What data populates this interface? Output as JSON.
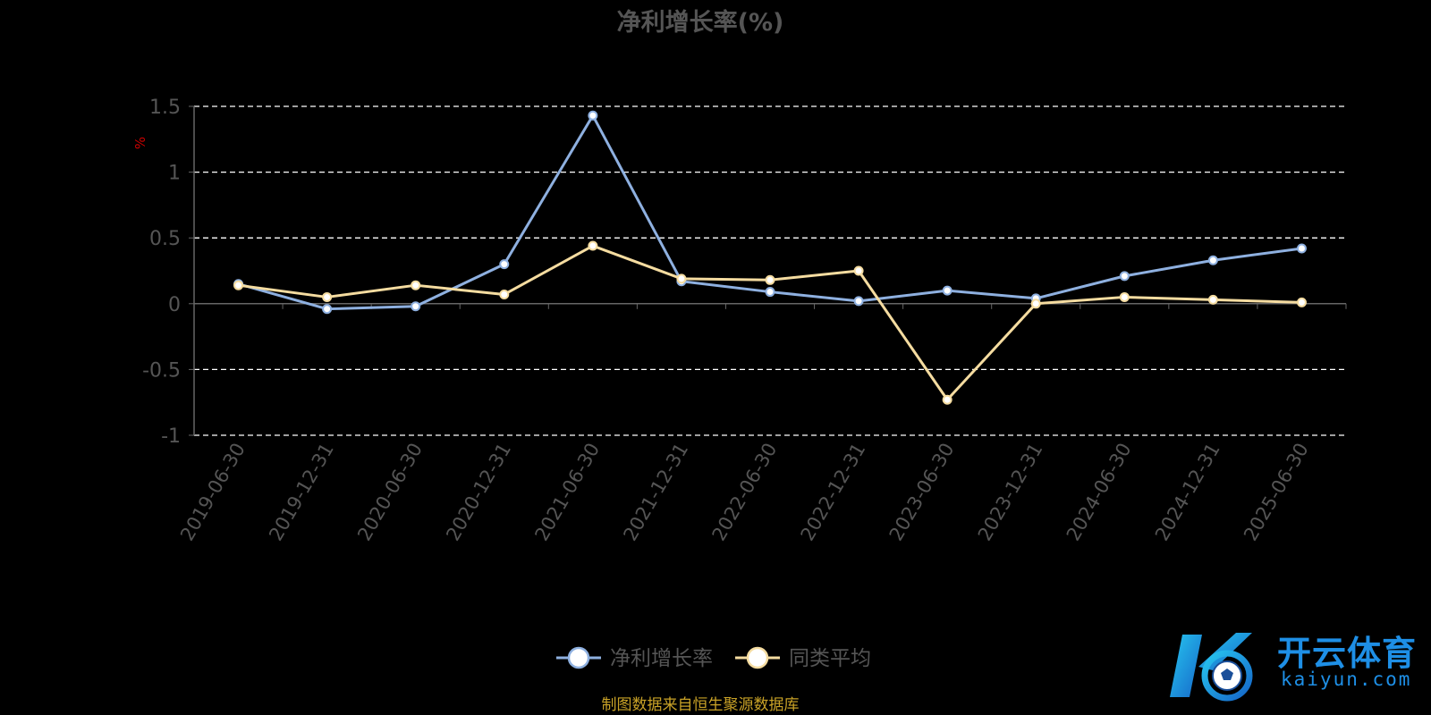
{
  "source_note": "制图数据来自恒生聚源数据库",
  "logo": {
    "text_cn": "开云体育",
    "text_en": "kaiyun.com"
  },
  "chart_data": {
    "type": "line",
    "title": "净利增长率(%)",
    "ylabel": "%",
    "xlabel": "",
    "ylim": [
      -1,
      1.5
    ],
    "yticks": [
      1.5,
      1,
      0.5,
      0,
      -0.5,
      -1
    ],
    "ytick_labels": [
      "1.5",
      "1",
      "0.5",
      "0",
      "-0.5",
      "-1"
    ],
    "grid": true,
    "legend_position": "bottom-center",
    "categories": [
      "2019-06-30",
      "2019-12-31",
      "2020-06-30",
      "2020-12-31",
      "2021-06-30",
      "2021-12-31",
      "2022-06-30",
      "2022-12-31",
      "2023-06-30",
      "2023-12-31",
      "2024-06-30",
      "2024-12-31",
      "2025-06-30"
    ],
    "series": [
      {
        "name": "净利增长率",
        "color": "#8eb0e0",
        "values": [
          0.15,
          -0.04,
          -0.02,
          0.3,
          1.43,
          0.17,
          0.09,
          0.02,
          0.1,
          0.04,
          0.21,
          0.33,
          0.42
        ]
      },
      {
        "name": "同类平均",
        "color": "#f5dca0",
        "values": [
          0.14,
          0.05,
          0.14,
          0.07,
          0.44,
          0.19,
          0.18,
          0.25,
          -0.73,
          0.0,
          0.05,
          0.03,
          0.01
        ]
      }
    ],
    "colors": {
      "background": "#000000",
      "axis": "#666666",
      "title": "#555555",
      "tick_label": "#555555",
      "ylabel": "#cc0000",
      "source_note": "#c9a227",
      "grid": "#ffffff",
      "logo": "#1e8fe6"
    }
  }
}
